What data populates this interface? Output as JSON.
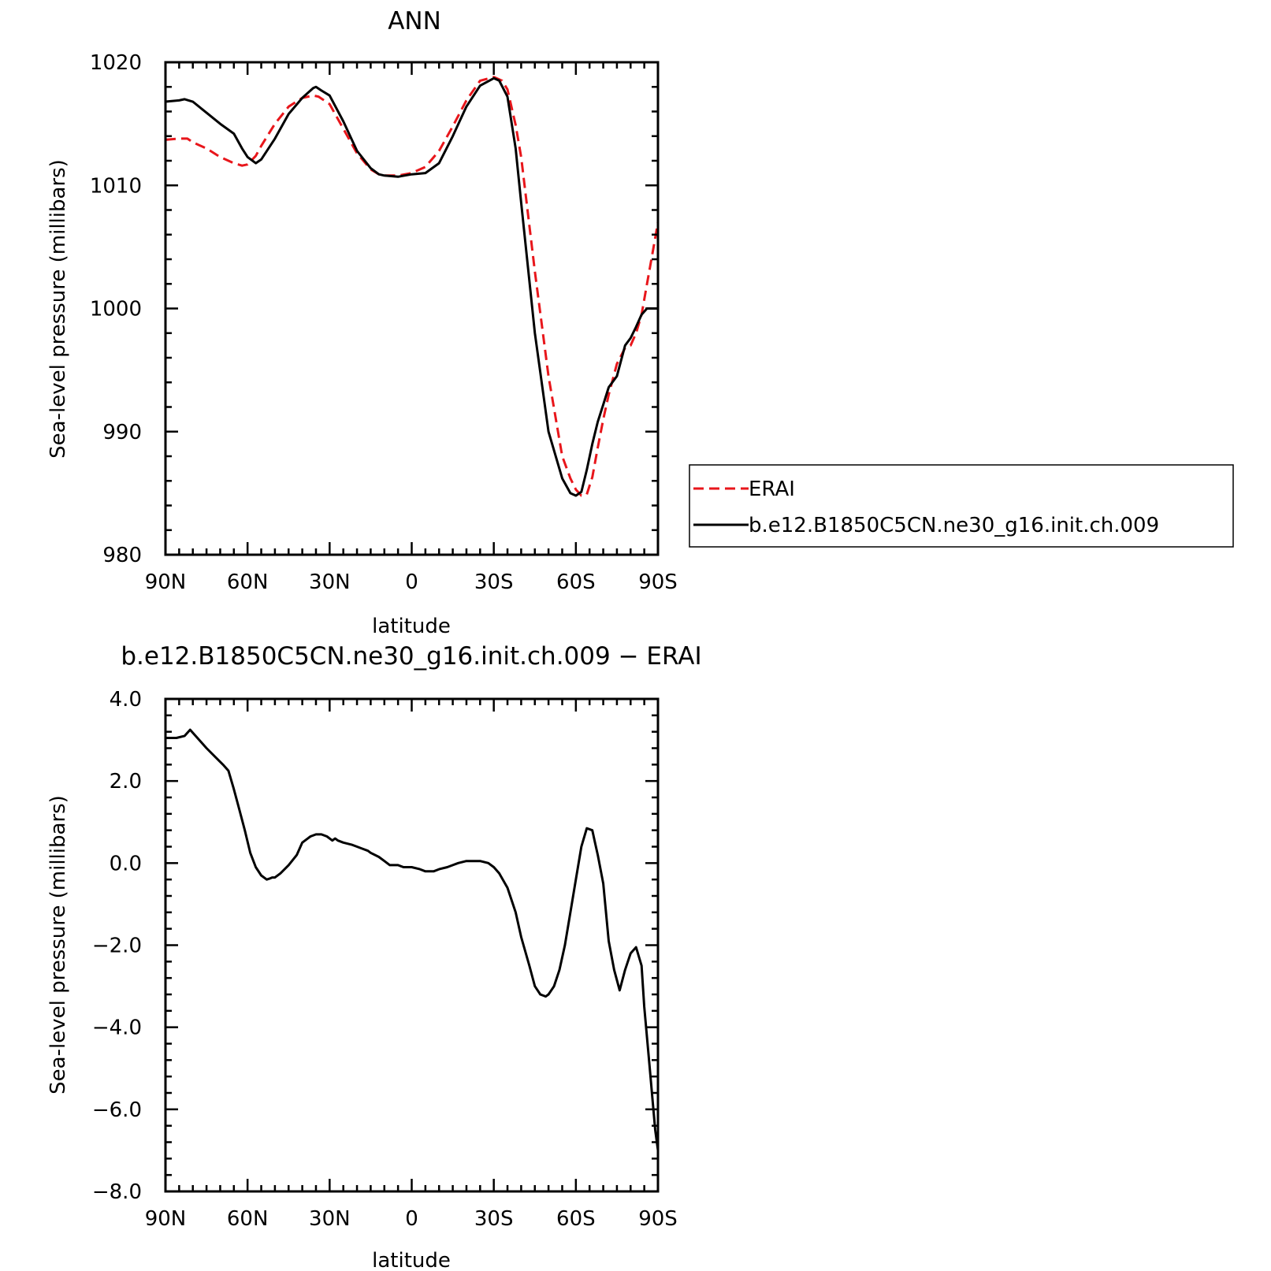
{
  "chart_data": [
    {
      "type": "line",
      "title": "ANN",
      "xlabel": "latitude",
      "ylabel": "Sea-level pressure (millibars)",
      "x_tick_labels": [
        "90N",
        "60N",
        "30N",
        "0",
        "30S",
        "60S",
        "90S"
      ],
      "x_tick_values": [
        90,
        60,
        30,
        0,
        -30,
        -60,
        -90
      ],
      "xlim": [
        90,
        -90
      ],
      "ylim": [
        980,
        1020
      ],
      "y_tick_labels": [
        "980",
        "990",
        "1000",
        "1010",
        "1020"
      ],
      "y_tick_values": [
        980,
        990,
        1000,
        1010,
        1020
      ],
      "grid": false,
      "legend": "right",
      "series": [
        {
          "name": "ERAI",
          "color": "#e8161b",
          "dash": true,
          "x": [
            90,
            85,
            82,
            80,
            75,
            70,
            65,
            62,
            60,
            57,
            55,
            50,
            45,
            40,
            36,
            34,
            30,
            25,
            20,
            15,
            12,
            10,
            5,
            0,
            -5,
            -10,
            -15,
            -20,
            -25,
            -30,
            -33,
            -35,
            -38,
            -40,
            -45,
            -50,
            -55,
            -58,
            -60,
            -62,
            -64,
            -66,
            -68,
            -70,
            -72,
            -75,
            -78,
            -80,
            -82,
            -84,
            -86,
            -88,
            -90
          ],
          "y": [
            1013.7,
            1013.8,
            1013.8,
            1013.5,
            1013.0,
            1012.3,
            1011.8,
            1011.6,
            1011.7,
            1012.4,
            1013.2,
            1015.0,
            1016.4,
            1017.1,
            1017.3,
            1017.2,
            1016.6,
            1014.6,
            1012.6,
            1011.3,
            1010.9,
            1010.8,
            1010.8,
            1011.0,
            1011.5,
            1012.8,
            1014.8,
            1016.9,
            1018.5,
            1018.8,
            1018.5,
            1017.8,
            1014.9,
            1012.3,
            1003.0,
            994.5,
            988.0,
            986.2,
            985.3,
            984.8,
            984.9,
            986.3,
            988.7,
            991.0,
            993.0,
            995.5,
            996.8,
            997.0,
            998.0,
            999.5,
            1002.0,
            1004.5,
            1007.0
          ]
        },
        {
          "name": "b.e12.B1850C5CN.ne30_g16.init.ch.009",
          "color": "#000000",
          "dash": false,
          "x": [
            90,
            85,
            83,
            80,
            75,
            70,
            65,
            62,
            60,
            57,
            55,
            50,
            45,
            40,
            36,
            35,
            33,
            30,
            25,
            20,
            15,
            12,
            10,
            5,
            0,
            -5,
            -10,
            -15,
            -20,
            -25,
            -30,
            -32,
            -35,
            -38,
            -40,
            -45,
            -50,
            -55,
            -58,
            -60,
            -62,
            -64,
            -66,
            -68,
            -70,
            -72,
            -75,
            -78,
            -80,
            -82,
            -84,
            -86,
            -88,
            -90
          ],
          "y": [
            1016.8,
            1016.9,
            1017.0,
            1016.8,
            1015.9,
            1015.0,
            1014.2,
            1013.0,
            1012.3,
            1011.8,
            1012.1,
            1013.8,
            1015.8,
            1017.1,
            1017.9,
            1018.0,
            1017.7,
            1017.3,
            1015.2,
            1012.8,
            1011.4,
            1010.9,
            1010.8,
            1010.7,
            1010.9,
            1011.0,
            1011.8,
            1014.0,
            1016.4,
            1018.1,
            1018.7,
            1018.5,
            1017.2,
            1013.0,
            1008.6,
            998.0,
            990.0,
            986.2,
            985.0,
            984.8,
            985.1,
            986.9,
            989.0,
            990.8,
            992.2,
            993.6,
            994.5,
            997.0,
            997.6,
            998.5,
            999.5,
            1000.0,
            1000.0,
            1000.0
          ]
        }
      ]
    },
    {
      "type": "line",
      "title": "b.e12.B1850C5CN.ne30_g16.init.ch.009 − ERAI",
      "xlabel": "latitude",
      "ylabel": "Sea-level pressure (millibars)",
      "x_tick_labels": [
        "90N",
        "60N",
        "30N",
        "0",
        "30S",
        "60S",
        "90S"
      ],
      "x_tick_values": [
        90,
        60,
        30,
        0,
        -30,
        -60,
        -90
      ],
      "xlim": [
        90,
        -90
      ],
      "ylim": [
        -8.0,
        4.0
      ],
      "y_tick_labels": [
        "−8.0",
        "−6.0",
        "−4.0",
        "−2.0",
        "0.0",
        "2.0",
        "4.0"
      ],
      "y_tick_values": [
        -8,
        -6,
        -4,
        -2,
        0,
        2,
        4
      ],
      "grid": false,
      "series": [
        {
          "color": "#000000",
          "x": [
            90,
            86,
            83,
            81,
            79,
            75,
            72,
            69,
            67,
            65,
            63,
            61,
            59,
            57,
            55,
            53,
            52,
            51,
            50,
            48,
            45,
            42,
            40,
            38,
            37,
            35,
            33,
            31,
            30,
            29,
            28,
            27,
            25,
            22,
            20,
            18,
            16,
            15,
            12,
            10,
            8,
            5,
            3,
            0,
            -3,
            -5,
            -8,
            -10,
            -13,
            -15,
            -17,
            -20,
            -22,
            -25,
            -28,
            -30,
            -32,
            -35,
            -38,
            -40,
            -43,
            -45,
            -47,
            -49,
            -50,
            -51,
            -52,
            -54,
            -56,
            -58,
            -60,
            -62,
            -64,
            -66,
            -67,
            -68,
            -70,
            -72,
            -74,
            -76,
            -78,
            -79,
            -80,
            -82,
            -84,
            -85,
            -87,
            -89,
            -90
          ],
          "y": [
            3.05,
            3.05,
            3.1,
            3.25,
            3.1,
            2.8,
            2.6,
            2.4,
            2.25,
            1.8,
            1.3,
            0.8,
            0.25,
            -0.1,
            -0.3,
            -0.4,
            -0.38,
            -0.35,
            -0.35,
            -0.25,
            -0.05,
            0.2,
            0.5,
            0.6,
            0.65,
            0.7,
            0.7,
            0.65,
            0.6,
            0.55,
            0.6,
            0.55,
            0.5,
            0.45,
            0.4,
            0.35,
            0.3,
            0.25,
            0.15,
            0.05,
            -0.05,
            -0.05,
            -0.1,
            -0.1,
            -0.15,
            -0.2,
            -0.2,
            -0.15,
            -0.1,
            -0.05,
            0.0,
            0.05,
            0.05,
            0.05,
            0.0,
            -0.1,
            -0.25,
            -0.6,
            -1.2,
            -1.8,
            -2.5,
            -3.0,
            -3.2,
            -3.25,
            -3.2,
            -3.1,
            -3.0,
            -2.6,
            -2.0,
            -1.2,
            -0.4,
            0.4,
            0.85,
            0.8,
            0.5,
            0.2,
            -0.5,
            -1.9,
            -2.6,
            -3.1,
            -2.6,
            -2.4,
            -2.2,
            -2.05,
            -2.5,
            -3.5,
            -5.0,
            -6.5,
            -7.0
          ]
        }
      ]
    }
  ]
}
